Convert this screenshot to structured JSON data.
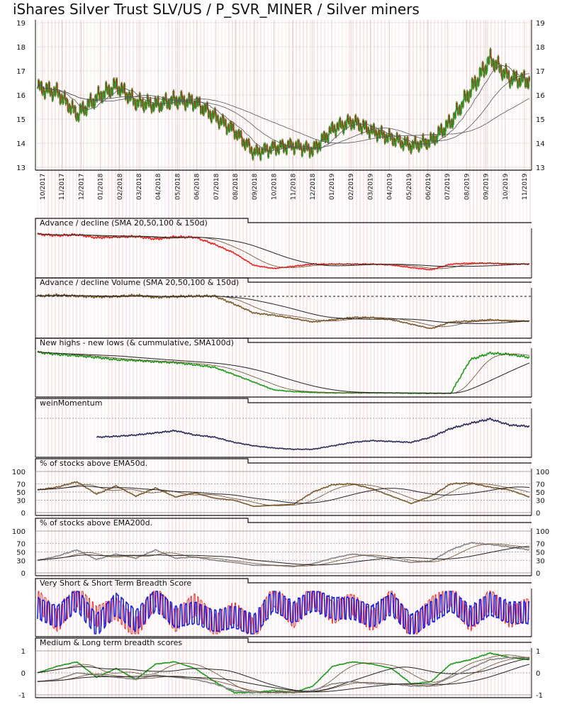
{
  "title": "iShares Silver Trust SLV/US / P_SVR_MINER / Silver miners",
  "date_labels": [
    "10/2017",
    "11/2017",
    "12/2017",
    "01/2018",
    "02/2018",
    "03/2018",
    "04/2018",
    "05/2018",
    "06/2018",
    "07/2018",
    "08/2018",
    "09/2018",
    "10/2018",
    "11/2018",
    "12/2018",
    "01/2019",
    "02/2019",
    "03/2019",
    "04/2019",
    "05/2019",
    "06/2019",
    "07/2019",
    "08/2019",
    "09/2019",
    "10/2019",
    "11/2019"
  ],
  "colors": {
    "up": "#2a9d2a",
    "down": "#8b4a1c",
    "advance_decline": "#ee2222",
    "ad_volume": "#7a5c30",
    "new_highs": "#1d9a1d",
    "momentum": "#2c2c5c",
    "ema50": "#7a5c30",
    "ema200": "#888888",
    "score_short": "#2222dd",
    "score_very_short": "#ee2222",
    "score_medium": "#1d9a1d",
    "score_long": "#888888"
  },
  "chart_data": [
    {
      "type": "line",
      "panel": "price",
      "ylim": [
        13,
        19
      ],
      "yticks": [
        "13",
        "14",
        "15",
        "16",
        "17",
        "18",
        "19"
      ],
      "x": [
        "10/2017",
        "11/2017",
        "12/2017",
        "01/2018",
        "02/2018",
        "03/2018",
        "04/2018",
        "05/2018",
        "06/2018",
        "07/2018",
        "08/2018",
        "09/2018",
        "10/2018",
        "11/2018",
        "12/2018",
        "01/2019",
        "02/2019",
        "03/2019",
        "04/2019",
        "05/2019",
        "06/2019",
        "07/2019",
        "08/2019",
        "09/2019",
        "10/2019",
        "11/2019"
      ],
      "series": [
        {
          "values": [
            16.3,
            16.1,
            15.2,
            15.9,
            16.4,
            15.7,
            15.6,
            15.8,
            15.7,
            15.1,
            14.5,
            13.6,
            13.8,
            13.9,
            13.7,
            14.6,
            14.9,
            14.5,
            14.2,
            13.9,
            14.1,
            14.9,
            16.2,
            17.5,
            16.7,
            16.6
          ]
        }
      ]
    },
    {
      "type": "line",
      "panel": "advance_decline",
      "title": "Advance / decline (SMA 20,50,100 & 150d)",
      "series": [
        {
          "values": [
            0.93,
            0.9,
            0.92,
            0.85,
            0.87,
            0.88,
            0.82,
            0.87,
            0.86,
            0.7,
            0.5,
            0.22,
            0.15,
            0.2,
            0.25,
            0.25,
            0.25,
            0.25,
            0.23,
            0.17,
            0.12,
            0.25,
            0.27,
            0.27,
            0.25,
            0.25
          ]
        }
      ]
    },
    {
      "type": "line",
      "panel": "advance_decline_volume",
      "title": "Advance / decline Volume (SMA 20,50,100 & 150d)",
      "series": [
        {
          "values": [
            0.88,
            0.9,
            0.88,
            0.86,
            0.87,
            0.9,
            0.85,
            0.87,
            0.88,
            0.88,
            0.7,
            0.5,
            0.45,
            0.38,
            0.3,
            0.35,
            0.4,
            0.4,
            0.35,
            0.25,
            0.15,
            0.3,
            0.32,
            0.35,
            0.32,
            0.32
          ]
        }
      ]
    },
    {
      "type": "line",
      "panel": "new_highs_lows",
      "title": "New highs - new lows (& cummulative, SMA100d)",
      "series": [
        {
          "values": [
            0.97,
            0.92,
            0.89,
            0.85,
            0.8,
            0.78,
            0.75,
            0.73,
            0.68,
            0.62,
            0.45,
            0.28,
            0.1,
            0.06,
            0.04,
            0.03,
            0.03,
            0.03,
            0.03,
            0.02,
            0.02,
            0.02,
            0.8,
            0.95,
            0.92,
            0.85
          ]
        }
      ]
    },
    {
      "type": "line",
      "panel": "wein_momentum",
      "title": "weinMomentum",
      "series": [
        {
          "values": [
            null,
            null,
            null,
            0.4,
            0.42,
            0.45,
            0.5,
            0.55,
            0.45,
            0.4,
            0.28,
            0.2,
            0.15,
            0.12,
            0.12,
            0.2,
            0.28,
            0.32,
            0.3,
            0.28,
            0.4,
            0.6,
            0.72,
            0.82,
            0.68,
            0.65
          ]
        }
      ]
    },
    {
      "type": "line",
      "panel": "pct_above_ema50",
      "title": "% of stocks above EMA50d.",
      "ylim": [
        0,
        100
      ],
      "yticks": [
        "0",
        "30",
        "50",
        "70",
        "100"
      ],
      "series": [
        {
          "values": [
            55,
            62,
            75,
            45,
            65,
            40,
            60,
            38,
            48,
            35,
            30,
            15,
            18,
            20,
            50,
            68,
            70,
            58,
            40,
            22,
            40,
            70,
            72,
            62,
            55,
            38
          ]
        }
      ]
    },
    {
      "type": "line",
      "panel": "pct_above_ema200",
      "title": "% of stocks above EMA200d.",
      "ylim": [
        0,
        100
      ],
      "yticks": [
        "0",
        "30",
        "50",
        "70",
        "100"
      ],
      "series": [
        {
          "values": [
            30,
            40,
            55,
            32,
            45,
            35,
            55,
            35,
            38,
            30,
            25,
            18,
            18,
            15,
            22,
            35,
            45,
            40,
            32,
            25,
            28,
            55,
            72,
            68,
            62,
            55
          ]
        }
      ]
    },
    {
      "type": "line",
      "panel": "very_short_short_score",
      "title": "Very Short & Short Term Breadth Score",
      "series": [
        {
          "values": [
            0.8,
            0.3,
            0.9,
            0.4,
            0.6,
            0.1,
            0.9,
            0.3,
            0.7,
            0.2,
            0.5,
            0.1,
            0.9,
            0.4,
            0.9,
            0.5,
            0.7,
            0.3,
            0.8,
            0.1,
            0.6,
            0.9,
            0.3,
            0.8,
            0.4,
            0.6
          ]
        },
        {
          "values": [
            0.6,
            0.4,
            0.8,
            0.2,
            0.7,
            0.3,
            0.8,
            0.4,
            0.5,
            0.3,
            0.4,
            0.2,
            0.8,
            0.5,
            0.8,
            0.6,
            0.6,
            0.4,
            0.7,
            0.2,
            0.5,
            0.8,
            0.4,
            0.7,
            0.5,
            0.5
          ]
        }
      ]
    },
    {
      "type": "line",
      "panel": "medium_long_score",
      "title": "Medium & Long term breadth scores",
      "ylim": [
        -1,
        1
      ],
      "yticks": [
        "-1",
        "0",
        "1"
      ],
      "series": [
        {
          "values": [
            0.0,
            0.3,
            0.5,
            -0.2,
            0.2,
            -0.3,
            0.4,
            0.5,
            0.2,
            -0.4,
            -0.9,
            -0.9,
            -0.8,
            -0.9,
            -0.6,
            0.3,
            0.5,
            0.4,
            0.2,
            -0.5,
            -0.4,
            0.4,
            0.6,
            0.9,
            0.7,
            0.6
          ]
        },
        {
          "values": [
            -0.4,
            -0.3,
            0.0,
            -0.1,
            -0.2,
            -0.3,
            -0.1,
            -0.2,
            -0.3,
            -0.5,
            -0.8,
            -0.9,
            -0.9,
            -0.9,
            -0.8,
            -0.5,
            -0.4,
            -0.5,
            -0.5,
            -0.6,
            -0.6,
            -0.2,
            0.2,
            0.6,
            0.7,
            0.7
          ]
        }
      ]
    }
  ]
}
